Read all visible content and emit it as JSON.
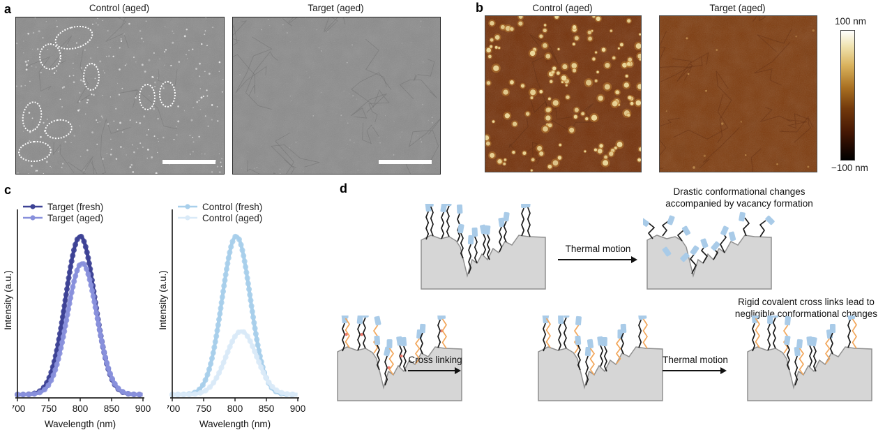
{
  "figure": {
    "panel_a": {
      "label": "a",
      "left_title": "Control (aged)",
      "right_title": "Target (aged)"
    },
    "panel_b": {
      "label": "b",
      "left_title": "Control (aged)",
      "right_title": "Target (aged)",
      "colorbar_max": "100 nm",
      "colorbar_min": "−100 nm"
    },
    "panel_c": {
      "label": "c"
    },
    "panel_d": {
      "label": "d",
      "caption_top_line1": "Drastic conformational changes",
      "caption_top_line2": "accompanied by vacancy formation",
      "caption_bottom_line1": "Rigid covalent cross links lead to",
      "caption_bottom_line2": "negligible conformational changes",
      "arrow1_label": "Thermal motion",
      "arrow2_label": "Cross linking",
      "arrow3_label": "Thermal motion"
    }
  },
  "colors": {
    "sem_gray": "#8b8b8b",
    "afm_control_base": "#732f07",
    "afm_target_base": "#7d3a0c",
    "afm_dot_bright": "#f2dd9b",
    "ligand_cap_blue": "#a9cbe8",
    "chain_black": "#1a1a1a",
    "crosslinker_orange": "#f2a65a",
    "reactive_site_red": "#ee7a6e",
    "substrate_gray": "#d6d6d6",
    "substrate_edge": "#8f8f8f"
  },
  "chart_data": [
    {
      "type": "line",
      "title": "",
      "xlabel": "Wavelength (nm)",
      "ylabel": "Intensity (a.u.)",
      "xlim": [
        700,
        900
      ],
      "xticks": [
        700,
        750,
        800,
        850,
        900
      ],
      "ylim": [
        0,
        1.05
      ],
      "grid": false,
      "legend_position": "top-left",
      "curve_shape": "gaussian",
      "series": [
        {
          "name": "Target (fresh)",
          "color": "#3d4295",
          "peak_nm": 800,
          "peak_intensity": 1.0,
          "fwhm_nm": 55
        },
        {
          "name": "Target (aged)",
          "color": "#8890dc",
          "peak_nm": 803,
          "peak_intensity": 0.83,
          "fwhm_nm": 55
        }
      ]
    },
    {
      "type": "line",
      "title": "",
      "xlabel": "Wavelength (nm)",
      "ylabel": "Intensity (a.u.)",
      "xlim": [
        700,
        900
      ],
      "xticks": [
        700,
        750,
        800,
        850,
        900
      ],
      "ylim": [
        0,
        1.05
      ],
      "grid": false,
      "legend_position": "top-left",
      "curve_shape": "gaussian",
      "series": [
        {
          "name": "Control (fresh)",
          "color": "#a8cfeb",
          "peak_nm": 802,
          "peak_intensity": 1.0,
          "fwhm_nm": 53
        },
        {
          "name": "Control (aged)",
          "color": "#d9eaf8",
          "peak_nm": 810,
          "peak_intensity": 0.4,
          "fwhm_nm": 57
        }
      ]
    }
  ]
}
